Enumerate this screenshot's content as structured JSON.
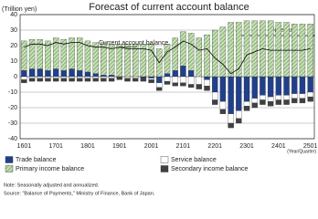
{
  "chart_data": {
    "type": "bar",
    "stacked": true,
    "title": "Forecast of current account balance",
    "y_label": "(Trillion yen)",
    "x_label": "(Year/Quarter)",
    "forecast_label": "Forecast",
    "notes": [
      "Note: Seasonally adjusted and annualized.",
      "Source: \"Balance of Payments,\" Ministry of Finance, Bank of Japan."
    ],
    "categories": [
      "1601",
      null,
      null,
      null,
      "1701",
      null,
      null,
      null,
      "1801",
      null,
      null,
      null,
      "1901",
      null,
      null,
      null,
      "2001",
      null,
      null,
      null,
      "2101",
      null,
      null,
      null,
      "2201",
      null,
      null,
      null,
      "2301",
      null,
      null,
      null,
      "2401",
      null,
      null,
      null,
      "2501"
    ],
    "series": [
      {
        "name": "Trade balance",
        "type": "bar",
        "color": "#1f3f8f",
        "values": [
          4,
          5,
          5,
          4,
          5,
          4,
          5,
          4,
          3,
          2,
          1,
          1,
          0,
          0,
          0,
          -1,
          -1,
          -4,
          2,
          4,
          7,
          4,
          0,
          -2,
          -10,
          -16,
          -24,
          -22,
          -16,
          -14,
          -12,
          -13,
          -12,
          -12,
          -11,
          -11,
          -10
        ]
      },
      {
        "name": "Service balance",
        "type": "bar",
        "color": "#ffffff",
        "values": [
          -2,
          -1,
          -1,
          -1,
          -1,
          -1,
          -1,
          -1,
          -1,
          -1,
          -1,
          -1,
          0,
          -1,
          -1,
          0,
          -1,
          -3,
          -3,
          -4,
          -4,
          -5,
          -5,
          -4,
          -5,
          -5,
          -6,
          -5,
          -3,
          -3,
          -3,
          -3,
          -3,
          -3,
          -3,
          -3,
          -3
        ]
      },
      {
        "name": "Primary income balance",
        "type": "bar",
        "color": "#c6e0b4",
        "values": [
          19,
          19,
          19,
          19,
          20,
          20,
          20,
          21,
          20,
          20,
          21,
          20,
          21,
          21,
          21,
          21,
          21,
          18,
          19,
          21,
          22,
          24,
          25,
          27,
          30,
          32,
          35,
          35,
          36,
          36,
          36,
          36,
          35,
          35,
          34,
          34,
          34
        ]
      },
      {
        "name": "Secondary income balance",
        "type": "bar",
        "color": "#404040",
        "values": [
          -2,
          -2,
          -2,
          -2,
          -2,
          -2,
          -2,
          -2,
          -2,
          -2,
          -2,
          -2,
          -2,
          -2,
          -2,
          -2,
          -2,
          -2,
          -2,
          -2,
          -2,
          -2,
          -3,
          -3,
          -3,
          -3,
          -3,
          -3,
          -3,
          -3,
          -3,
          -3,
          -3,
          -3,
          -3,
          -3,
          -3
        ]
      },
      {
        "name": "Current account balance",
        "type": "line",
        "color": "#000000",
        "values": [
          19,
          21,
          21,
          20,
          22,
          21,
          22,
          22,
          20,
          19,
          19,
          18,
          19,
          18,
          18,
          18,
          17,
          9,
          16,
          19,
          23,
          21,
          17,
          18,
          12,
          8,
          2,
          5,
          14,
          16,
          18,
          17,
          17,
          17,
          17,
          17,
          18
        ]
      }
    ],
    "ylim": [
      -40,
      40
    ],
    "yticks": [
      -40,
      -30,
      -20,
      -10,
      0,
      10,
      20,
      30,
      40
    ],
    "grid": true
  }
}
